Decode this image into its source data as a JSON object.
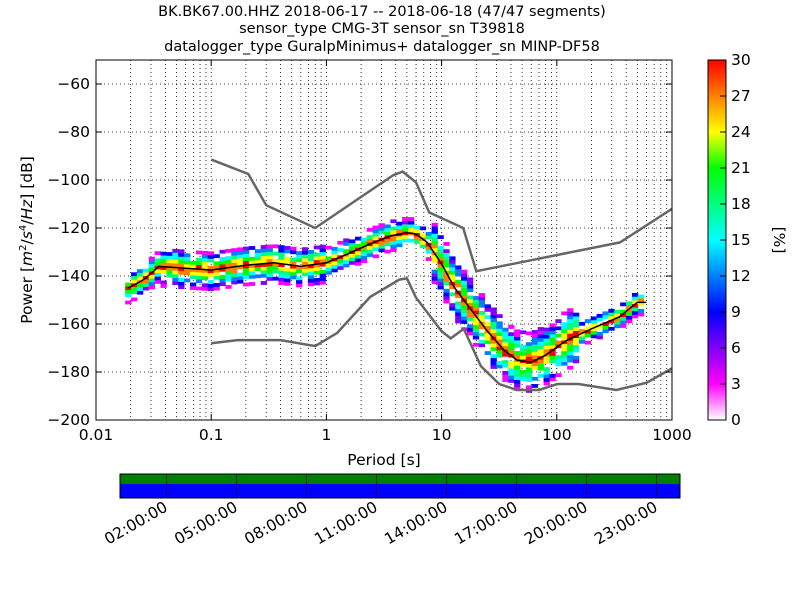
{
  "header": {
    "line1": "BK.BK67.00.HHZ   2018-06-17 -- 2018-06-18  (47/47 segments)",
    "line2": "sensor_type CMG-3T sensor_sn T39818",
    "line3": "datalogger_type GuralpMinimus+ datalogger_sn MINP-DF58"
  },
  "chart_data": {
    "type": "heatmap",
    "xlabel": "Period [s]",
    "ylabel": "Power [m²/s⁴/Hz] [dB]",
    "xscale": "log",
    "xlim": [
      0.01,
      1000
    ],
    "ylim": [
      -200,
      -50
    ],
    "x_ticks": [
      {
        "value": 0.01,
        "label": "0.01"
      },
      {
        "value": 0.1,
        "label": "0.1"
      },
      {
        "value": 1,
        "label": "1"
      },
      {
        "value": 10,
        "label": "10"
      },
      {
        "value": 100,
        "label": "100"
      },
      {
        "value": 1000,
        "label": "1000"
      }
    ],
    "y_ticks": [
      {
        "value": -60,
        "label": "−60"
      },
      {
        "value": -80,
        "label": "−80"
      },
      {
        "value": -100,
        "label": "−100"
      },
      {
        "value": -120,
        "label": "−120"
      },
      {
        "value": -140,
        "label": "−140"
      },
      {
        "value": -160,
        "label": "−160"
      },
      {
        "value": -180,
        "label": "−180"
      },
      {
        "value": -200,
        "label": "−200"
      }
    ],
    "grid": true,
    "series": [
      {
        "color": "#666666",
        "points": [
          [
            0.1,
            -91.5
          ],
          [
            0.21,
            -97.5
          ],
          [
            0.3,
            -110.5
          ],
          [
            0.8,
            -120
          ],
          [
            3.8,
            -98
          ],
          [
            4.6,
            -96.5
          ],
          [
            6,
            -101
          ],
          [
            7.8,
            -113.5
          ],
          [
            15.4,
            -120
          ],
          [
            20,
            -138
          ],
          [
            354,
            -126
          ],
          [
            1000,
            -112
          ]
        ]
      },
      {
        "color": "#666666",
        "points": [
          [
            0.1,
            -168
          ],
          [
            0.17,
            -166.7
          ],
          [
            0.4,
            -166.7
          ],
          [
            0.8,
            -169.2
          ],
          [
            1.24,
            -163.7
          ],
          [
            2.4,
            -148.7
          ],
          [
            4.3,
            -141.5
          ],
          [
            5,
            -141
          ],
          [
            6,
            -149
          ],
          [
            10,
            -163
          ],
          [
            12,
            -166
          ],
          [
            15.6,
            -162
          ],
          [
            21.9,
            -177.5
          ],
          [
            31.6,
            -185
          ],
          [
            45,
            -187.5
          ],
          [
            70,
            -187.5
          ],
          [
            101,
            -185
          ],
          [
            154,
            -185
          ],
          [
            328,
            -187.5
          ],
          [
            600,
            -184.5
          ],
          [
            1000,
            -178.5
          ]
        ]
      },
      {
        "color": "#000000",
        "points": [
          [
            0.019,
            -145
          ],
          [
            0.025,
            -142
          ],
          [
            0.03,
            -139
          ],
          [
            0.035,
            -136
          ],
          [
            0.05,
            -136.5
          ],
          [
            0.1,
            -137.5
          ],
          [
            0.2,
            -135.5
          ],
          [
            0.35,
            -134.5
          ],
          [
            0.6,
            -136
          ],
          [
            1,
            -134.5
          ],
          [
            1.5,
            -131
          ],
          [
            2.3,
            -127
          ],
          [
            3.5,
            -123.5
          ],
          [
            5,
            -122
          ],
          [
            6,
            -122.5
          ],
          [
            7.5,
            -126
          ],
          [
            10,
            -135
          ],
          [
            13,
            -145
          ],
          [
            18,
            -154
          ],
          [
            25,
            -163
          ],
          [
            35,
            -171
          ],
          [
            45,
            -175
          ],
          [
            60,
            -176
          ],
          [
            80,
            -173
          ],
          [
            120,
            -167
          ],
          [
            200,
            -162
          ],
          [
            350,
            -157
          ],
          [
            500,
            -151
          ],
          [
            600,
            -151
          ]
        ]
      }
    ],
    "colorbar": {
      "label": "[%]",
      "range": [
        0,
        30
      ],
      "ticks": [
        0,
        3,
        6,
        9,
        12,
        15,
        18,
        21,
        24,
        27,
        30
      ],
      "tick_labels": [
        "0",
        "3",
        "6",
        "9",
        "12",
        "15",
        "18",
        "21",
        "24",
        "27",
        "30"
      ],
      "colors": [
        "#ffffff",
        "#ff00ff",
        "#8000ff",
        "#0000ff",
        "#0080ff",
        "#00ffff",
        "#00ff80",
        "#00ff00",
        "#ffff00",
        "#ff8000",
        "#ff0000"
      ]
    }
  },
  "timeline": {
    "labels": [
      "02:00:00",
      "05:00:00",
      "08:00:00",
      "11:00:00",
      "14:00:00",
      "17:00:00",
      "20:00:00",
      "23:00:00"
    ],
    "top_color": "#008000",
    "bottom_color": "#0000ff"
  }
}
